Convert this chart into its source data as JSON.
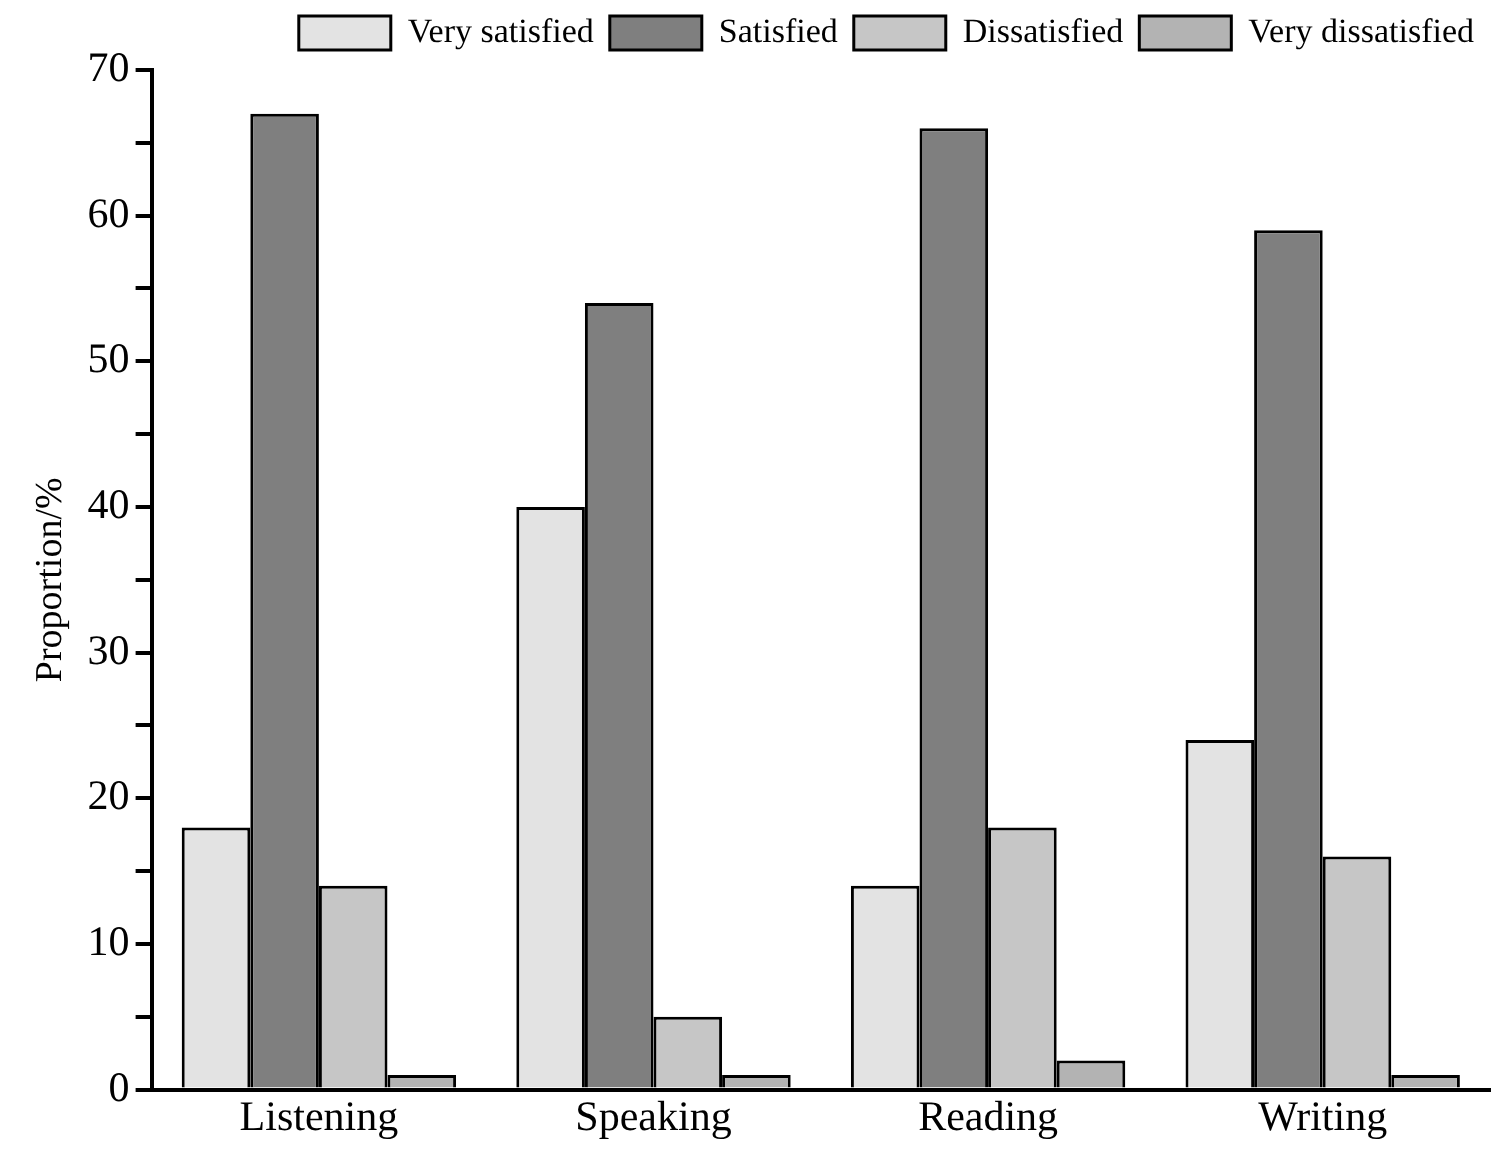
{
  "chart_data": {
    "type": "bar",
    "ylabel": "Proportion/%",
    "categories": [
      "Listening",
      "Speaking",
      "Reading",
      "Writing"
    ],
    "series": [
      {
        "name": "Very satisfied",
        "color": "#e3e3e3",
        "values": [
          18,
          40,
          14,
          24
        ]
      },
      {
        "name": "Satisfied",
        "color": "#7f7f7f",
        "values": [
          67,
          54,
          66,
          59
        ]
      },
      {
        "name": "Dissatisfied",
        "color": "#c6c6c6",
        "values": [
          14,
          5,
          18,
          16
        ]
      },
      {
        "name": "Very dissatisfied",
        "color": "#b3b3b3",
        "values": [
          1,
          1,
          2,
          1
        ]
      }
    ],
    "ylim": [
      0,
      70
    ],
    "yticks": [
      0,
      {
        "value": 5,
        "label": null
      },
      10,
      {
        "value": 15,
        "label": null
      },
      20,
      {
        "value": 25,
        "label": null
      },
      30,
      {
        "value": 35,
        "label": null
      },
      40,
      {
        "value": 45,
        "label": null
      },
      50,
      {
        "value": 55,
        "label": null
      },
      60,
      {
        "value": 65,
        "label": null
      },
      70
    ],
    "grid": false,
    "legend": "top"
  }
}
